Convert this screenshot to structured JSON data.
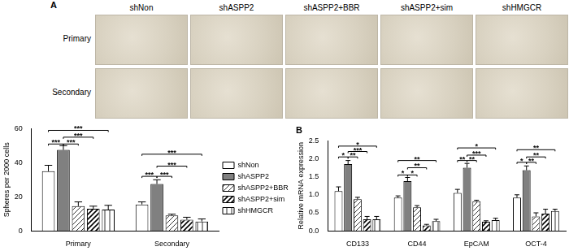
{
  "image_panel": {
    "label": "A",
    "columns": [
      "shNon",
      "shASPP2",
      "shASPP2+BBR",
      "shASPP2+sim",
      "shHMGCR"
    ],
    "rows": [
      "Primary",
      "Secondary"
    ]
  },
  "chart_data": [
    {
      "type": "bar",
      "y_label": "Spheres per 2000 cells",
      "categories": [
        "Primary",
        "Secondary"
      ],
      "series": [
        {
          "name": "shNon",
          "color": "#ffffff",
          "values": [
            35,
            15.5
          ],
          "errors": [
            3.5,
            1.5
          ]
        },
        {
          "name": "shASPP2",
          "color": "#808080",
          "values": [
            47.5,
            27.5
          ],
          "errors": [
            2.5,
            2.5
          ]
        },
        {
          "name": "shASPP2+BBR",
          "color": "#ffffff",
          "values": [
            14.5,
            9
          ],
          "errors": [
            2.5,
            0.8
          ]
        },
        {
          "name": "shASPP2+sim",
          "color": "#ffffff",
          "values": [
            13,
            6.5
          ],
          "errors": [
            1.5,
            1.5
          ]
        },
        {
          "name": "shHMGCR",
          "color": "#ffffff",
          "values": [
            12.5,
            5.5
          ],
          "errors": [
            2.5,
            1.5
          ]
        }
      ],
      "ylim": [
        0,
        60
      ],
      "yticks": [
        0,
        20,
        40,
        60
      ],
      "grid": false,
      "legend": "right",
      "annotations": [
        {
          "category": "Primary",
          "series": [
            "shNon",
            "shASPP2"
          ],
          "y": 51,
          "text": "***"
        },
        {
          "category": "Primary",
          "series": [
            "shASPP2",
            "shASPP2+BBR"
          ],
          "y": 51,
          "text": "***"
        },
        {
          "category": "Primary",
          "series": [
            "shASPP2",
            "shASPP2+sim"
          ],
          "y": 55,
          "text": "***"
        },
        {
          "category": "Primary",
          "series": [
            "shNon",
            "shHMGCR"
          ],
          "y": 59,
          "text": "***"
        },
        {
          "category": "Secondary",
          "series": [
            "shNon",
            "shASPP2"
          ],
          "y": 32,
          "text": "***"
        },
        {
          "category": "Secondary",
          "series": [
            "shASPP2",
            "shASPP2+BBR"
          ],
          "y": 32,
          "text": "***"
        },
        {
          "category": "Secondary",
          "series": [
            "shASPP2",
            "shASPP2+sim"
          ],
          "y": 38,
          "text": "***"
        },
        {
          "category": "Secondary",
          "series": [
            "shNon",
            "shHMGCR"
          ],
          "y": 45,
          "text": "***"
        }
      ]
    },
    {
      "type": "bar",
      "title": "B",
      "y_label": "Relative mRNA expression",
      "categories": [
        "CD133",
        "CD44",
        "EpCAM",
        "OCT-4"
      ],
      "series": [
        {
          "name": "shNon",
          "color": "#ffffff",
          "values": [
            1.1,
            0.92,
            1.05,
            0.92
          ],
          "errors": [
            0.12,
            0.05,
            0.1,
            0.08
          ]
        },
        {
          "name": "shASPP2",
          "color": "#808080",
          "values": [
            1.85,
            1.38,
            1.75,
            1.68
          ],
          "errors": [
            0.1,
            0.1,
            0.12,
            0.12
          ]
        },
        {
          "name": "shASPP2+BBR",
          "color": "#ffffff",
          "values": [
            0.88,
            0.65,
            0.82,
            0.4
          ],
          "errors": [
            0.05,
            0.05,
            0.03,
            0.1
          ]
        },
        {
          "name": "shASPP2+sim",
          "color": "#ffffff",
          "values": [
            0.32,
            0.15,
            0.25,
            0.48
          ],
          "errors": [
            0.08,
            0.03,
            0.03,
            0.12
          ]
        },
        {
          "name": "shHMGCR",
          "color": "#ffffff",
          "values": [
            0.32,
            0.27,
            0.3,
            0.55
          ],
          "errors": [
            0.08,
            0.05,
            0.05,
            0.05
          ]
        }
      ],
      "ylim": [
        0,
        2.5
      ],
      "yticks": [
        {
          "value": 0,
          "label": "0.0"
        },
        {
          "value": 0.5,
          "label": "0.5"
        },
        {
          "value": 1,
          "label": "1.0"
        },
        {
          "value": 1.5,
          "label": "1.5"
        },
        {
          "value": 2,
          "label": "2.0"
        },
        {
          "value": 2.5,
          "label": "2.5"
        }
      ],
      "grid": false,
      "annotations": [
        {
          "category": "CD133",
          "series": [
            "shNon",
            "shASPP2"
          ],
          "y": 2.05,
          "text": "*"
        },
        {
          "category": "CD133",
          "series": [
            "shASPP2",
            "shASPP2+BBR"
          ],
          "y": 2.05,
          "text": "**"
        },
        {
          "category": "CD133",
          "series": [
            "shASPP2",
            "shASPP2+sim"
          ],
          "y": 2.2,
          "text": "***"
        },
        {
          "category": "CD133",
          "series": [
            "shNon",
            "shHMGCR"
          ],
          "y": 2.35,
          "text": "*"
        },
        {
          "category": "CD44",
          "series": [
            "shNon",
            "shASPP2"
          ],
          "y": 1.55,
          "text": "*"
        },
        {
          "category": "CD44",
          "series": [
            "shASPP2",
            "shASPP2+BBR"
          ],
          "y": 1.55,
          "text": "*"
        },
        {
          "category": "CD44",
          "series": [
            "shASPP2",
            "shASPP2+sim"
          ],
          "y": 1.75,
          "text": "**"
        },
        {
          "category": "CD44",
          "series": [
            "shNon",
            "shHMGCR"
          ],
          "y": 1.95,
          "text": "**"
        },
        {
          "category": "EpCAM",
          "series": [
            "shNon",
            "shASPP2"
          ],
          "y": 1.95,
          "text": "**"
        },
        {
          "category": "EpCAM",
          "series": [
            "shASPP2",
            "shASPP2+BBR"
          ],
          "y": 1.95,
          "text": "**"
        },
        {
          "category": "EpCAM",
          "series": [
            "shASPP2",
            "shASPP2+sim"
          ],
          "y": 2.1,
          "text": "***"
        },
        {
          "category": "EpCAM",
          "series": [
            "shNon",
            "shHMGCR"
          ],
          "y": 2.3,
          "text": "*"
        },
        {
          "category": "OCT-4",
          "series": [
            "shNon",
            "shASPP2"
          ],
          "y": 1.9,
          "text": "*"
        },
        {
          "category": "OCT-4",
          "series": [
            "shASPP2",
            "shASPP2+BBR"
          ],
          "y": 1.9,
          "text": "**"
        },
        {
          "category": "OCT-4",
          "series": [
            "shASPP2",
            "shASPP2+sim"
          ],
          "y": 2.05,
          "text": "**"
        },
        {
          "category": "OCT-4",
          "series": [
            "shNon",
            "shHMGCR"
          ],
          "y": 2.25,
          "text": "**"
        }
      ]
    }
  ]
}
